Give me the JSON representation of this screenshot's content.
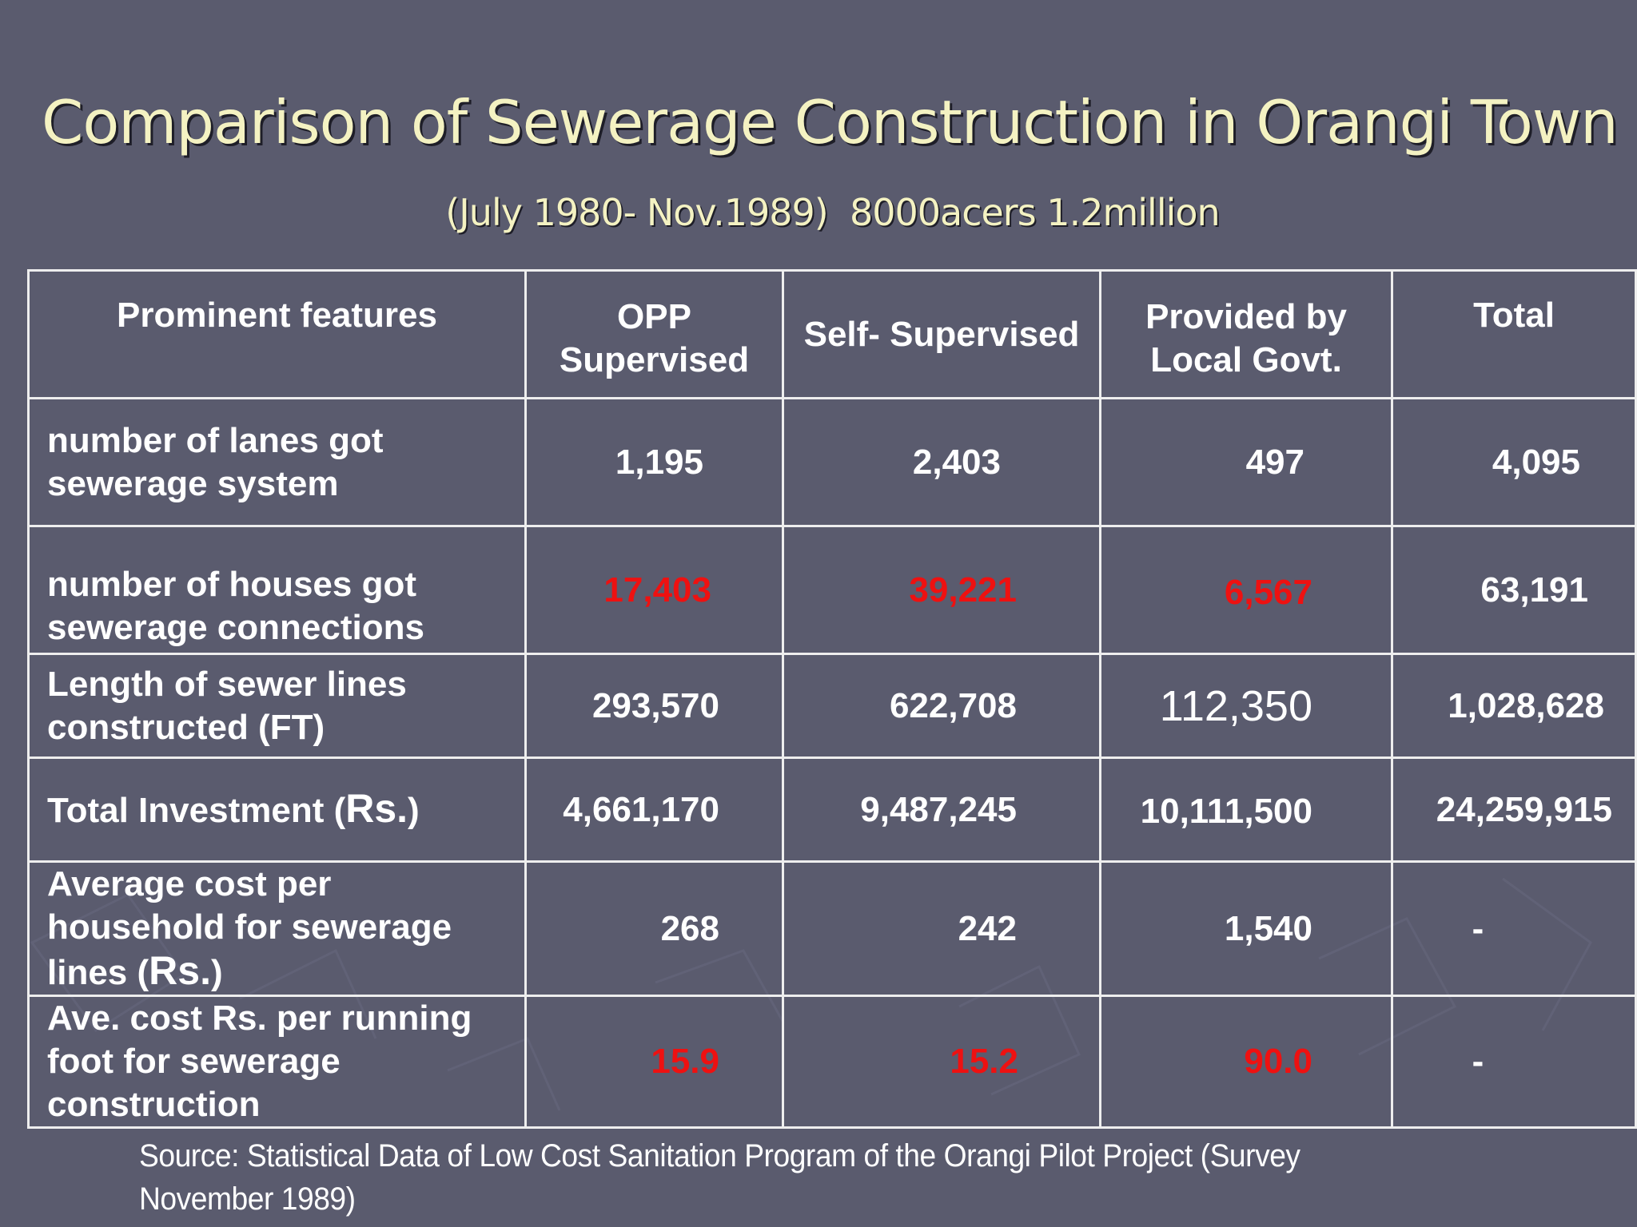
{
  "slide": {
    "title": "Comparison of Sewerage Construction in Orangi Town",
    "subtitle": "(July 1980- Nov.1989)  8000acers 1.2million",
    "source": "Source: Statistical Data of Low Cost Sanitation Program of the Orangi Pilot Project (Survey November 1989)",
    "colors": {
      "background": "#5a5b6e",
      "title": "#f4f2c2",
      "highlight": "#ee1111",
      "text": "#ffffff"
    }
  },
  "table": {
    "headers": {
      "feature": "Prominent features",
      "opp_1": "OPP",
      "opp_2": "Supervised",
      "self": "Self- Supervised",
      "govt_1": "Provided by",
      "govt_2": "Local Govt.",
      "total": "Total"
    },
    "rows": {
      "lanes": {
        "f1": "number of lanes got",
        "f2": "sewerage system",
        "opp": "1,195",
        "self": "2,403",
        "govt": "497",
        "total": "4,095"
      },
      "houses": {
        "f1": "number of houses got",
        "f2": "sewerage connections",
        "opp": "17,403",
        "self": "39,221",
        "govt": "6,567",
        "total": "63,191"
      },
      "length": {
        "f1": "Length of sewer lines",
        "f2": "constructed  (FT)",
        "opp": "293,570",
        "self": "622,708",
        "govt": "112,350",
        "total": "1,028,628"
      },
      "investment": {
        "f1": "Total Investment (",
        "f1b": "Rs.",
        "f1c": ")",
        "opp": "4,661,170",
        "self": "9,487,245",
        "govt": "10,111,500",
        "total": "24,259,915"
      },
      "avg_household": {
        "f1": "Average cost per",
        "f2": "household for sewerage",
        "f3": "lines  (",
        "f3b": "Rs.",
        "f3c": ")",
        "opp": "268",
        "self": "242",
        "govt": "1,540",
        "total": "-"
      },
      "avg_foot": {
        "f1": "Ave. cost Rs. per running",
        "f2": "foot for sewerage",
        "f3": "construction",
        "opp": "15.9",
        "self": "15.2",
        "govt": "90.0",
        "total": "-"
      }
    }
  }
}
